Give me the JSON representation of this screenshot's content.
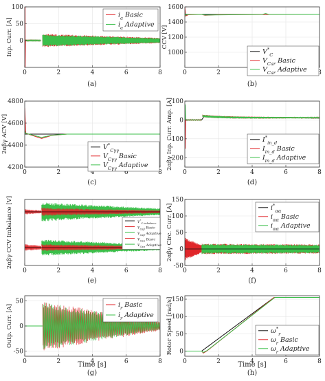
{
  "figure": {
    "colors": {
      "basic": "#e0262a",
      "adaptive": "#3bbf4a",
      "ref": "#111111"
    },
    "captions": [
      "(a)",
      "(b)",
      "(c)",
      "(d)",
      "(e)",
      "(f)",
      "(g)",
      "(h)"
    ],
    "xlabel": "Time [s]",
    "x_ticks": [
      "0",
      "2",
      "4",
      "6",
      "8"
    ]
  },
  "chart_data": [
    {
      "id": "a",
      "type": "line",
      "caption": "(a)",
      "ylabel": "Inp. Curr. [A]",
      "xlim": [
        0,
        8
      ],
      "ylim": [
        -80,
        100
      ],
      "yticks": [
        0,
        50,
        100
      ],
      "legend": "top-right",
      "series": [
        {
          "name": "i_a Basic",
          "color": "#e0262a",
          "points": [
            [
              0,
              100
            ],
            [
              0.02,
              -80
            ],
            [
              0.05,
              0
            ],
            [
              1.0,
              0
            ],
            [
              1.1,
              -20
            ],
            [
              1.1,
              20
            ],
            [
              2,
              13
            ],
            [
              4,
              -10
            ],
            [
              8,
              -10
            ]
          ]
        },
        {
          "name": "i_a Adaptive",
          "color": "#3bbf4a",
          "points": [
            [
              0.05,
              0
            ],
            [
              1.0,
              0
            ],
            [
              1.1,
              -18
            ],
            [
              1.1,
              18
            ],
            [
              2,
              12
            ],
            [
              4,
              -9
            ],
            [
              8,
              -9
            ]
          ]
        }
      ]
    },
    {
      "id": "b",
      "type": "line",
      "caption": "(b)",
      "ylabel": "CCV [V]",
      "xlim": [
        0,
        8
      ],
      "ylim": [
        800,
        1600
      ],
      "yticks": [
        1000,
        1200,
        1400,
        1600
      ],
      "legend": "bottom-right",
      "series": [
        {
          "name": "V_C^* ",
          "color": "#111111",
          "points": [
            [
              0,
              1500
            ],
            [
              8,
              1500
            ]
          ]
        },
        {
          "name": "V_Car Basic",
          "color": "#e0262a",
          "points": [
            [
              0,
              1600
            ],
            [
              0.1,
              1480
            ],
            [
              1,
              1500
            ],
            [
              1.2,
              1490
            ],
            [
              8,
              1500
            ]
          ]
        },
        {
          "name": "V_Car Adaptive",
          "color": "#3bbf4a",
          "points": [
            [
              0,
              1520
            ],
            [
              0.1,
              1490
            ],
            [
              1,
              1500
            ],
            [
              4.8,
              1510
            ],
            [
              8,
              1500
            ]
          ]
        }
      ]
    },
    {
      "id": "c",
      "type": "line",
      "caption": "(c)",
      "ylabel": "2αβγ ACV [V]",
      "xlim": [
        0,
        8
      ],
      "ylim": [
        4200,
        4800
      ],
      "yticks": [
        4200,
        4400,
        4600,
        4800
      ],
      "legend": "bottom-right",
      "series": [
        {
          "name": "V_Cγγ^*",
          "color": "#111111",
          "points": [
            [
              0,
              4500
            ],
            [
              8,
              4500
            ]
          ]
        },
        {
          "name": "V_Cγγ Basic",
          "color": "#e0262a",
          "points": [
            [
              0,
              4740
            ],
            [
              0.1,
              4500
            ],
            [
              1,
              4460
            ],
            [
              2,
              4500
            ],
            [
              8,
              4500
            ]
          ]
        },
        {
          "name": "V_Cγγ Adaptive",
          "color": "#3bbf4a",
          "points": [
            [
              0,
              4520
            ],
            [
              0.1,
              4500
            ],
            [
              1,
              4470
            ],
            [
              2,
              4500
            ],
            [
              8,
              4500
            ]
          ]
        }
      ]
    },
    {
      "id": "d",
      "type": "line",
      "caption": "(d)",
      "ylabel": "2αβγ Inp. Curr. Amp. [A]",
      "xlim": [
        0,
        8
      ],
      "ylim": [
        -250,
        100
      ],
      "yticks": [
        -200,
        -100,
        0,
        100
      ],
      "legend": "bottom-right",
      "series": [
        {
          "name": "I_in_d^*",
          "color": "#111111",
          "points": [
            [
              0,
              0
            ],
            [
              1,
              0
            ],
            [
              1.2,
              20
            ],
            [
              2,
              15
            ],
            [
              8,
              10
            ]
          ]
        },
        {
          "name": "I_in_d Basic",
          "color": "#e0262a",
          "points": [
            [
              0,
              -150
            ],
            [
              0.1,
              0
            ],
            [
              1,
              0
            ],
            [
              1.2,
              25
            ],
            [
              2,
              18
            ],
            [
              8,
              12
            ]
          ]
        },
        {
          "name": "I_in_d Adaptive",
          "color": "#3bbf4a",
          "points": [
            [
              0,
              80
            ],
            [
              0.1,
              0
            ],
            [
              1,
              0
            ],
            [
              1.2,
              22
            ],
            [
              2,
              17
            ],
            [
              8,
              12
            ]
          ]
        }
      ]
    },
    {
      "id": "e",
      "type": "line",
      "caption": "(e)",
      "ylabel": "2αβγ CCV Imbalance [V]",
      "xlim": [
        0,
        8
      ],
      "yticks": [],
      "legend": "inside-middle",
      "series": [
        {
          "name": "V_C imbalance^*",
          "color": "#111111",
          "points": [
            [
              0,
              0
            ],
            [
              8,
              0
            ]
          ]
        },
        {
          "name": "V_Cαβ Basic",
          "color": "#e0262a",
          "points": [
            [
              0,
              0
            ],
            [
              8,
              0
            ]
          ]
        },
        {
          "name": "V_Cαβ Adaptive",
          "color": "#3bbf4a",
          "points": [
            [
              0,
              0
            ],
            [
              8,
              0
            ]
          ]
        },
        {
          "name": "V_Cαα Basic",
          "color": "#e0262a",
          "points": [
            [
              0,
              0
            ],
            [
              8,
              0
            ]
          ]
        },
        {
          "name": "V_Cαα Adaptive",
          "color": "#3bbf4a",
          "points": [
            [
              0,
              0
            ],
            [
              8,
              0
            ]
          ]
        }
      ]
    },
    {
      "id": "f",
      "type": "line",
      "caption": "(f)",
      "ylabel": "2αβγ Circ. Curr. [A]",
      "xlim": [
        0,
        8
      ],
      "ylim": [
        -50,
        150
      ],
      "yticks": [
        -50,
        0,
        50,
        100,
        150
      ],
      "legend": "top-right",
      "series": [
        {
          "name": "i_αα^*",
          "color": "#111111",
          "points": [
            [
              0,
              0
            ],
            [
              8,
              0
            ]
          ]
        },
        {
          "name": "i_αα Basic",
          "color": "#e0262a",
          "points": [
            [
              0,
              -35
            ],
            [
              0.5,
              -30
            ],
            [
              1,
              15
            ],
            [
              8,
              15
            ]
          ]
        },
        {
          "name": "i_αα Adaptive",
          "color": "#3bbf4a",
          "points": [
            [
              0,
              0
            ],
            [
              1,
              0
            ],
            [
              1.1,
              15
            ],
            [
              8,
              15
            ]
          ]
        }
      ]
    },
    {
      "id": "g",
      "type": "line",
      "caption": "(g)",
      "ylabel": "Outp. Curr. [A]",
      "xlim": [
        0,
        8
      ],
      "ylim": [
        -60,
        60
      ],
      "yticks": [
        -50,
        0,
        50
      ],
      "legend": "top-right",
      "series": [
        {
          "name": "i_r Basic",
          "color": "#e0262a",
          "points": [
            [
              0,
              0
            ],
            [
              1,
              0
            ],
            [
              1.2,
              50
            ],
            [
              2,
              20
            ],
            [
              4,
              10
            ],
            [
              8,
              10
            ]
          ]
        },
        {
          "name": "i_r Adaptive",
          "color": "#3bbf4a",
          "points": [
            [
              0,
              0
            ],
            [
              1,
              0
            ],
            [
              1.2,
              48
            ],
            [
              2,
              18
            ],
            [
              4,
              9
            ],
            [
              8,
              9
            ]
          ]
        }
      ]
    },
    {
      "id": "h",
      "type": "line",
      "caption": "(h)",
      "ylabel": "Rotor Speed [rad/s]",
      "xlim": [
        0,
        8
      ],
      "ylim": [
        -15,
        160
      ],
      "yticks": [
        0,
        50,
        100,
        150
      ],
      "legend": "bottom-right",
      "series": [
        {
          "name": "ω_r^*",
          "color": "#111111",
          "points": [
            [
              0,
              0
            ],
            [
              1,
              0
            ],
            [
              5.3,
              155
            ],
            [
              8,
              155
            ]
          ]
        },
        {
          "name": "ω_r Basic",
          "color": "#e0262a",
          "points": [
            [
              0,
              0
            ],
            [
              1,
              0
            ],
            [
              1.1,
              -5
            ],
            [
              5.3,
              155
            ],
            [
              8,
              155
            ]
          ]
        },
        {
          "name": "ω_r Adaptive",
          "color": "#3bbf4a",
          "points": [
            [
              0,
              0
            ],
            [
              1,
              0
            ],
            [
              1.1,
              -4
            ],
            [
              5.3,
              155
            ],
            [
              8,
              155
            ]
          ]
        }
      ]
    }
  ]
}
